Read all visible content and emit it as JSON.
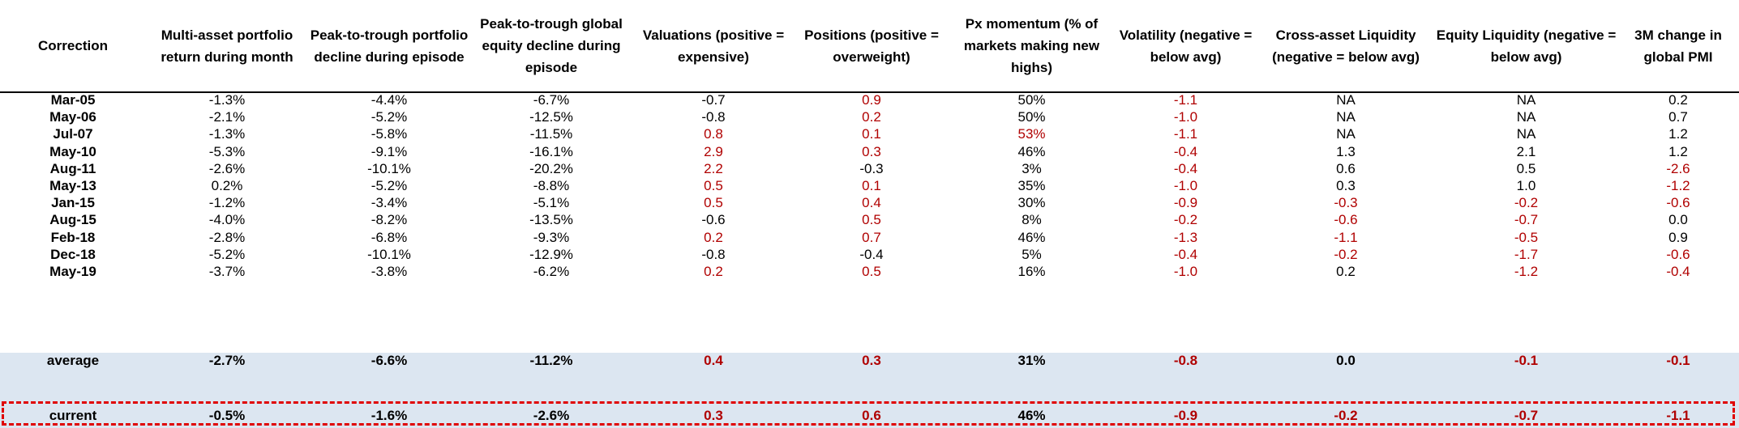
{
  "colors": {
    "negative_text": "#b00000",
    "band_fill": "#dce6f1",
    "current_box_border": "#e00000"
  },
  "headers": [
    "Correction",
    "Multi-asset portfolio return during month",
    "Peak-to-trough portfolio decline during episode",
    "Peak-to-trough global equity decline during episode",
    "Valuations (positive = expensive)",
    "Positions (positive = overweight)",
    "Px momentum (% of markets making new highs)",
    "Volatility (negative = below avg)",
    "Cross-asset Liquidity (negative = below avg)",
    "Equity Liquidity (negative = below avg)",
    "3M change in global PMI"
  ],
  "rows": [
    {
      "cells": [
        "Mar-05",
        "-1.3%",
        "-4.4%",
        "-6.7%",
        "-0.7",
        "0.9",
        "50%",
        "-1.1",
        "NA",
        "NA",
        "0.2"
      ],
      "red": [
        false,
        false,
        false,
        false,
        false,
        true,
        false,
        true,
        false,
        false,
        false
      ]
    },
    {
      "cells": [
        "May-06",
        "-2.1%",
        "-5.2%",
        "-12.5%",
        "-0.8",
        "0.2",
        "50%",
        "-1.0",
        "NA",
        "NA",
        "0.7"
      ],
      "red": [
        false,
        false,
        false,
        false,
        false,
        true,
        false,
        true,
        false,
        false,
        false
      ]
    },
    {
      "cells": [
        "Jul-07",
        "-1.3%",
        "-5.8%",
        "-11.5%",
        "0.8",
        "0.1",
        "53%",
        "-1.1",
        "NA",
        "NA",
        "1.2"
      ],
      "red": [
        false,
        false,
        false,
        false,
        true,
        true,
        true,
        true,
        false,
        false,
        false
      ]
    },
    {
      "cells": [
        "May-10",
        "-5.3%",
        "-9.1%",
        "-16.1%",
        "2.9",
        "0.3",
        "46%",
        "-0.4",
        "1.3",
        "2.1",
        "1.2"
      ],
      "red": [
        false,
        false,
        false,
        false,
        true,
        true,
        false,
        true,
        false,
        false,
        false
      ]
    },
    {
      "cells": [
        "Aug-11",
        "-2.6%",
        "-10.1%",
        "-20.2%",
        "2.2",
        "-0.3",
        "3%",
        "-0.4",
        "0.6",
        "0.5",
        "-2.6"
      ],
      "red": [
        false,
        false,
        false,
        false,
        true,
        false,
        false,
        true,
        false,
        false,
        true
      ]
    },
    {
      "cells": [
        "May-13",
        "0.2%",
        "-5.2%",
        "-8.8%",
        "0.5",
        "0.1",
        "35%",
        "-1.0",
        "0.3",
        "1.0",
        "-1.2"
      ],
      "red": [
        false,
        false,
        false,
        false,
        true,
        true,
        false,
        true,
        false,
        false,
        true
      ]
    },
    {
      "cells": [
        "Jan-15",
        "-1.2%",
        "-3.4%",
        "-5.1%",
        "0.5",
        "0.4",
        "30%",
        "-0.9",
        "-0.3",
        "-0.2",
        "-0.6"
      ],
      "red": [
        false,
        false,
        false,
        false,
        true,
        true,
        false,
        true,
        true,
        true,
        true
      ]
    },
    {
      "cells": [
        "Aug-15",
        "-4.0%",
        "-8.2%",
        "-13.5%",
        "-0.6",
        "0.5",
        "8%",
        "-0.2",
        "-0.6",
        "-0.7",
        "0.0"
      ],
      "red": [
        false,
        false,
        false,
        false,
        false,
        true,
        false,
        true,
        true,
        true,
        false
      ]
    },
    {
      "cells": [
        "Feb-18",
        "-2.8%",
        "-6.8%",
        "-9.3%",
        "0.2",
        "0.7",
        "46%",
        "-1.3",
        "-1.1",
        "-0.5",
        "0.9"
      ],
      "red": [
        false,
        false,
        false,
        false,
        true,
        true,
        false,
        true,
        true,
        true,
        false
      ]
    },
    {
      "cells": [
        "Dec-18",
        "-5.2%",
        "-10.1%",
        "-12.9%",
        "-0.8",
        "-0.4",
        "5%",
        "-0.4",
        "-0.2",
        "-1.7",
        "-0.6"
      ],
      "red": [
        false,
        false,
        false,
        false,
        false,
        false,
        false,
        true,
        true,
        true,
        true
      ]
    },
    {
      "cells": [
        "May-19",
        "-3.7%",
        "-3.8%",
        "-6.2%",
        "0.2",
        "0.5",
        "16%",
        "-1.0",
        "0.2",
        "-1.2",
        "-0.4"
      ],
      "red": [
        false,
        false,
        false,
        false,
        true,
        true,
        false,
        true,
        false,
        true,
        true
      ]
    }
  ],
  "average": {
    "cells": [
      "average",
      "-2.7%",
      "-6.6%",
      "-11.2%",
      "0.4",
      "0.3",
      "31%",
      "-0.8",
      "0.0",
      "-0.1",
      "-0.1"
    ],
    "red": [
      false,
      false,
      false,
      false,
      true,
      true,
      false,
      true,
      false,
      true,
      true
    ]
  },
  "current": {
    "cells": [
      "current",
      "-0.5%",
      "-1.6%",
      "-2.6%",
      "0.3",
      "0.6",
      "46%",
      "-0.9",
      "-0.2",
      "-0.7",
      "-1.1"
    ],
    "red": [
      false,
      false,
      false,
      false,
      true,
      true,
      false,
      true,
      true,
      true,
      true
    ]
  }
}
